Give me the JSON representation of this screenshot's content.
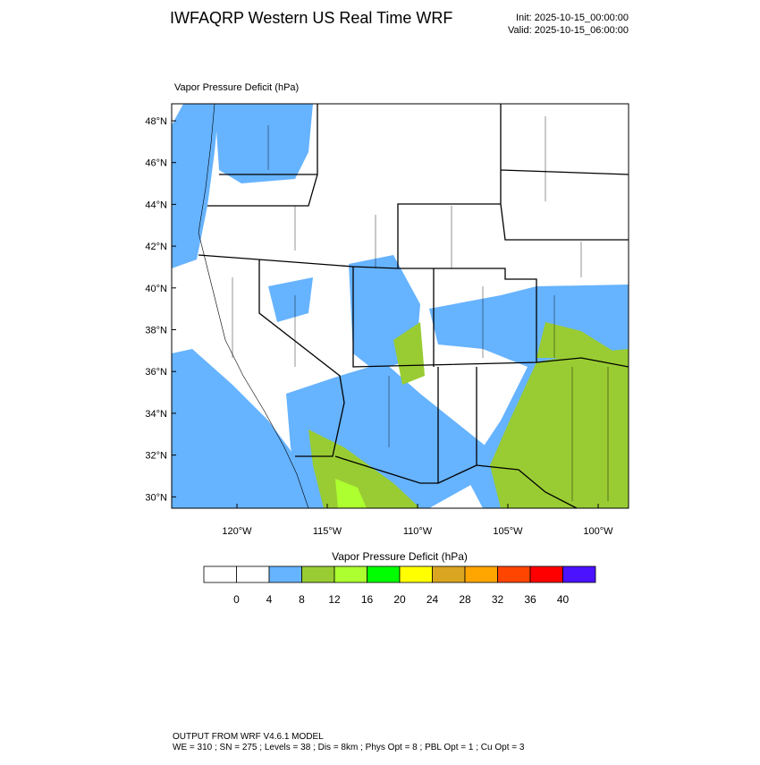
{
  "header": {
    "title": "IWFAQRP Western US Real Time WRF",
    "init": "Init: 2025-10-15_00:00:00",
    "valid": "Valid: 2025-10-15_06:00:00"
  },
  "map": {
    "subtitle": "Vapor Pressure Deficit   (hPa)",
    "lat_labels": [
      "48°N",
      "46°N",
      "44°N",
      "42°N",
      "40°N",
      "38°N",
      "36°N",
      "34°N",
      "32°N",
      "30°N"
    ],
    "lon_labels": [
      "120°W",
      "115°W",
      "110°W",
      "105°W",
      "100°W"
    ]
  },
  "colorbar": {
    "title": "Vapor Pressure Deficit  (hPa)",
    "labels": [
      0,
      4,
      8,
      12,
      16,
      20,
      24,
      28,
      32,
      36,
      40
    ],
    "colors": [
      "#ffffff",
      "#ffffff",
      "#66b3ff",
      "#99cc33",
      "#adff2f",
      "#00ff00",
      "#ffff00",
      "#daa520",
      "#ffa500",
      "#ff4500",
      "#ff0000",
      "#4b12ff"
    ]
  },
  "footer": {
    "line1": "OUTPUT FROM WRF V4.6.1 MODEL",
    "line2": "WE = 310 ; SN = 275 ; Levels = 38 ; Dis = 8km ; Phys Opt = 8 ; PBL Opt = 1 ; Cu Opt = 3"
  }
}
